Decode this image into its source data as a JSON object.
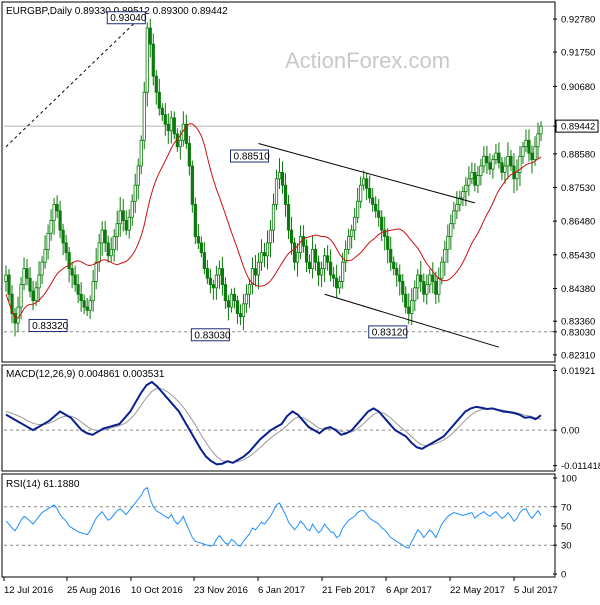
{
  "header": {
    "symbol_line": "EURGBP,Daily  0.89330 0.89512 0.89300 0.89442",
    "watermark": "ActionForex.com"
  },
  "colors": {
    "candle": "#0a7a0a",
    "ma": "#cc1111",
    "trendline": "#000000",
    "macd_main": "#0a1f8f",
    "macd_signal": "#999999",
    "rsi": "#1e90ff",
    "grid_dash": "#8a8a8a"
  },
  "chart_data": [
    {
      "type": "candlestick",
      "name": "price",
      "title": "EURGBP,Daily  0.89330 0.89512 0.89300 0.89442",
      "x_tick_labels": [
        "12 Jul 2016",
        "25 Aug 2016",
        "10 Oct 2016",
        "23 Nov 2016",
        "6 Jan 2017",
        "21 Feb 2017",
        "6 Apr 2017",
        "22 May 2017",
        "5 Jul 2017"
      ],
      "y_tick_labels": [
        "0.92780",
        "0.91750",
        "0.90680",
        "0.89442",
        "0.88580",
        "0.87530",
        "0.86480",
        "0.85430",
        "0.84380",
        "0.83360",
        "0.83030",
        "0.82310"
      ],
      "ylim": [
        0.8215,
        0.9325
      ],
      "current_price": 0.89442,
      "support_level": 0.8303,
      "annotations": [
        {
          "label": "0.93040",
          "value": 0.9304
        },
        {
          "label": "0.83320",
          "value": 0.8332
        },
        {
          "label": "0.83030",
          "value": 0.8303
        },
        {
          "label": "0.88510",
          "value": 0.8851
        },
        {
          "label": "0.83120",
          "value": 0.8312
        }
      ],
      "close_series": [
        0.848,
        0.842,
        0.836,
        0.833,
        0.838,
        0.845,
        0.85,
        0.847,
        0.843,
        0.84,
        0.844,
        0.848,
        0.852,
        0.856,
        0.861,
        0.865,
        0.87,
        0.868,
        0.862,
        0.858,
        0.855,
        0.85,
        0.848,
        0.845,
        0.842,
        0.84,
        0.838,
        0.837,
        0.84,
        0.846,
        0.852,
        0.858,
        0.862,
        0.858,
        0.854,
        0.856,
        0.86,
        0.864,
        0.868,
        0.865,
        0.862,
        0.866,
        0.871,
        0.876,
        0.882,
        0.89,
        0.905,
        0.925,
        0.92,
        0.91,
        0.905,
        0.9,
        0.898,
        0.895,
        0.893,
        0.897,
        0.892,
        0.888,
        0.89,
        0.895,
        0.889,
        0.882,
        0.87,
        0.86,
        0.858,
        0.855,
        0.85,
        0.847,
        0.845,
        0.844,
        0.848,
        0.85,
        0.845,
        0.84,
        0.838,
        0.842,
        0.84,
        0.836,
        0.835,
        0.839,
        0.842,
        0.845,
        0.85,
        0.848,
        0.852,
        0.855,
        0.854,
        0.858,
        0.862,
        0.87,
        0.878,
        0.88,
        0.876,
        0.87,
        0.862,
        0.858,
        0.852,
        0.855,
        0.86,
        0.857,
        0.852,
        0.85,
        0.856,
        0.852,
        0.848,
        0.85,
        0.854,
        0.852,
        0.848,
        0.847,
        0.844,
        0.846,
        0.852,
        0.856,
        0.86,
        0.862,
        0.866,
        0.871,
        0.876,
        0.878,
        0.875,
        0.872,
        0.87,
        0.868,
        0.866,
        0.862,
        0.86,
        0.856,
        0.852,
        0.85,
        0.848,
        0.846,
        0.842,
        0.838,
        0.836,
        0.84,
        0.844,
        0.848,
        0.846,
        0.842,
        0.845,
        0.848,
        0.846,
        0.842,
        0.847,
        0.852,
        0.856,
        0.86,
        0.864,
        0.868,
        0.87,
        0.872,
        0.874,
        0.876,
        0.878,
        0.88,
        0.876,
        0.879,
        0.882,
        0.885,
        0.883,
        0.881,
        0.884,
        0.886,
        0.883,
        0.88,
        0.882,
        0.885,
        0.882,
        0.878,
        0.88,
        0.885,
        0.888,
        0.89,
        0.886,
        0.884,
        0.888,
        0.892,
        0.8944
      ],
      "trendlines": [
        {
          "from_index": 0,
          "from_value": 0.888,
          "to_index": 47,
          "to_value": 0.9304,
          "dashed": true
        },
        {
          "from_index": 84,
          "from_value": 0.889,
          "to_index": 156,
          "to_value": 0.8705,
          "dashed": false
        },
        {
          "from_index": 106,
          "from_value": 0.842,
          "to_index": 164,
          "to_value": 0.8255,
          "dashed": false
        }
      ]
    },
    {
      "type": "line",
      "name": "macd",
      "title": "MACD(12,26,9) 0.004861 0.003531",
      "ylim": [
        -0.0125,
        0.02
      ],
      "y_tick_labels": [
        "0.01921",
        "0.00",
        "-0.011418"
      ],
      "main_series": [
        0.005,
        0.004,
        0.003,
        0.002,
        0.001,
        0.0,
        0.001,
        0.002,
        0.003,
        0.0045,
        0.006,
        0.005,
        0.004,
        0.002,
        0.0,
        -0.001,
        -0.0015,
        -0.0005,
        0.0005,
        0.001,
        0.0015,
        0.002,
        0.004,
        0.006,
        0.009,
        0.012,
        0.0145,
        0.0155,
        0.014,
        0.012,
        0.01,
        0.008,
        0.006,
        0.003,
        0.0,
        -0.003,
        -0.006,
        -0.0085,
        -0.01,
        -0.011,
        -0.0108,
        -0.01,
        -0.0105,
        -0.0095,
        -0.0085,
        -0.007,
        -0.005,
        -0.003,
        -0.0015,
        0.0,
        0.001,
        0.002,
        0.0045,
        0.006,
        0.005,
        0.003,
        0.001,
        0.0,
        -0.001,
        0.0005,
        0.001,
        0.0,
        -0.0015,
        -0.001,
        0.0,
        0.002,
        0.004,
        0.006,
        0.007,
        0.006,
        0.004,
        0.002,
        0.0,
        -0.001,
        -0.002,
        -0.004,
        -0.0055,
        -0.006,
        -0.005,
        -0.004,
        -0.003,
        -0.002,
        0.0,
        0.002,
        0.004,
        0.006,
        0.007,
        0.0075,
        0.0072,
        0.0068,
        0.007,
        0.0065,
        0.006,
        0.0058,
        0.0055,
        0.005,
        0.004,
        0.0042,
        0.0035,
        0.0048
      ],
      "signal_series": [
        0.006,
        0.0055,
        0.0048,
        0.004,
        0.003,
        0.0022,
        0.0018,
        0.0018,
        0.0022,
        0.003,
        0.004,
        0.0045,
        0.0045,
        0.0038,
        0.0025,
        0.0012,
        0.0002,
        -0.0002,
        0.0,
        0.0005,
        0.001,
        0.0014,
        0.0022,
        0.0035,
        0.0055,
        0.008,
        0.0105,
        0.0125,
        0.0135,
        0.0132,
        0.0122,
        0.0108,
        0.009,
        0.007,
        0.0045,
        0.0018,
        -0.0012,
        -0.004,
        -0.0065,
        -0.0085,
        -0.0098,
        -0.0102,
        -0.0104,
        -0.0101,
        -0.0095,
        -0.0085,
        -0.0072,
        -0.0056,
        -0.004,
        -0.0025,
        -0.0012,
        0.0,
        0.0015,
        0.0032,
        0.0042,
        0.004,
        0.003,
        0.0018,
        0.0006,
        0.0002,
        0.0005,
        0.0004,
        -0.0004,
        -0.0008,
        -0.0006,
        0.0004,
        0.0018,
        0.0035,
        0.005,
        0.0058,
        0.0054,
        0.0042,
        0.0026,
        0.001,
        -0.0004,
        -0.002,
        -0.0036,
        -0.0048,
        -0.005,
        -0.0046,
        -0.004,
        -0.0032,
        -0.002,
        -0.0004,
        0.0014,
        0.0032,
        0.0048,
        0.006,
        0.0066,
        0.0068,
        0.0069,
        0.0067,
        0.0064,
        0.0061,
        0.0058,
        0.0054,
        0.0048,
        0.0045,
        0.004,
        0.0035
      ]
    },
    {
      "type": "line",
      "name": "rsi",
      "title": "RSI(14) 61.1880",
      "ylim": [
        0,
        100
      ],
      "y_tick_labels": [
        "100",
        "70",
        "50",
        "30",
        "0"
      ],
      "reference_levels": [
        70,
        30
      ],
      "series": [
        55,
        52,
        48,
        45,
        50,
        56,
        60,
        58,
        55,
        52,
        56,
        60,
        64,
        66,
        68,
        70,
        72,
        68,
        62,
        58,
        55,
        50,
        48,
        46,
        44,
        43,
        42,
        41,
        45,
        52,
        58,
        62,
        65,
        60,
        56,
        58,
        62,
        66,
        68,
        65,
        62,
        66,
        70,
        74,
        78,
        82,
        88,
        90,
        78,
        70,
        66,
        64,
        62,
        60,
        58,
        62,
        56,
        52,
        55,
        60,
        52,
        45,
        38,
        34,
        33,
        32,
        31,
        30,
        29,
        30,
        36,
        40,
        36,
        32,
        31,
        36,
        34,
        30,
        29,
        34,
        38,
        42,
        48,
        46,
        50,
        54,
        52,
        56,
        60,
        66,
        72,
        74,
        68,
        62,
        54,
        50,
        46,
        50,
        55,
        52,
        47,
        45,
        52,
        47,
        43,
        46,
        52,
        48,
        44,
        43,
        38,
        40,
        48,
        52,
        56,
        58,
        60,
        64,
        66,
        66,
        62,
        58,
        56,
        54,
        52,
        48,
        46,
        42,
        38,
        36,
        34,
        32,
        30,
        28,
        27,
        34,
        40,
        46,
        43,
        38,
        42,
        46,
        43,
        38,
        45,
        52,
        56,
        60,
        62,
        64,
        63,
        62,
        61,
        62,
        63,
        64,
        58,
        61,
        63,
        65,
        62,
        60,
        63,
        65,
        61,
        58,
        60,
        64,
        60,
        55,
        58,
        64,
        67,
        68,
        62,
        58,
        62,
        66,
        61
      ]
    }
  ]
}
